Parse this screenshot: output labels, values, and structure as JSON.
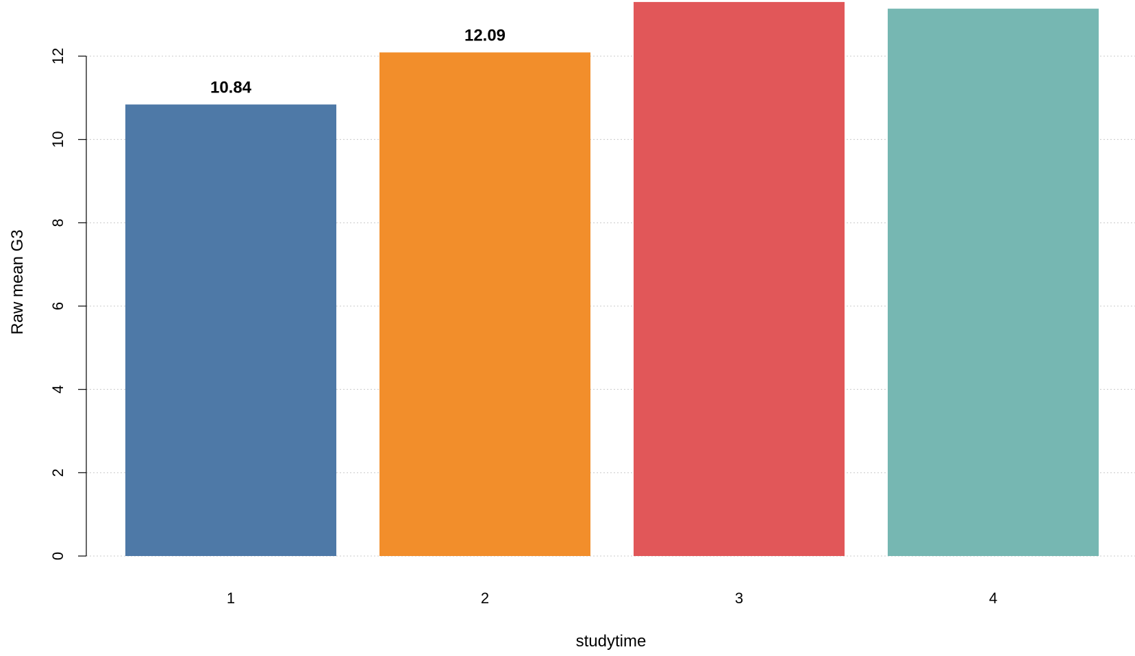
{
  "chart_data": {
    "type": "bar",
    "title": "",
    "xlabel": "studytime",
    "ylabel": "Raw mean G3",
    "categories": [
      "1",
      "2",
      "3",
      "4"
    ],
    "values": [
      10.84,
      12.09,
      13.3,
      13.14
    ],
    "data_labels": [
      "10.84",
      "12.09",
      "",
      ""
    ],
    "colors": [
      "#4e79a7",
      "#f28e2b",
      "#e15759",
      "#76b7b2"
    ],
    "ylim": [
      0,
      13.5
    ],
    "yticks": [
      0,
      2,
      4,
      6,
      8,
      10,
      12
    ],
    "grid": true,
    "legend": "none"
  }
}
